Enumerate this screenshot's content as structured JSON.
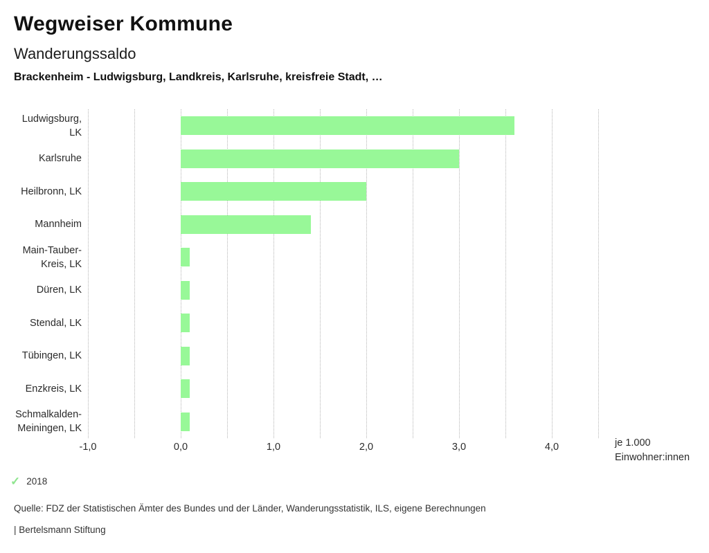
{
  "header": {
    "title": "Wegweiser Kommune",
    "subtitle": "Wanderungssaldo",
    "comparison": "Brackenheim - Ludwigsburg, Landkreis, Karlsruhe, kreisfreie Stadt, …"
  },
  "chart_data": {
    "type": "bar",
    "orientation": "horizontal",
    "title": "Wanderungssaldo",
    "categories": [
      "Ludwigsburg,\nLK",
      "Karlsruhe",
      "Heilbronn, LK",
      "Mannheim",
      "Main-Tauber-\nKreis, LK",
      "Düren, LK",
      "Stendal, LK",
      "Tübingen, LK",
      "Enzkreis, LK",
      "Schmalkalden-\nMeiningen, LK"
    ],
    "series": [
      {
        "name": "2018",
        "values": [
          3.6,
          3.0,
          2.0,
          1.4,
          0.1,
          0.1,
          0.1,
          0.1,
          0.1,
          0.1
        ]
      }
    ],
    "xlim": [
      -1.0,
      4.5
    ],
    "grid_step": 0.5,
    "grid": "vertical-dotted",
    "x_tick_values": [
      -1,
      0,
      1,
      2,
      3,
      4
    ],
    "x_tick_labels": [
      "-1,0",
      "0,0",
      "1,0",
      "2,0",
      "3,0",
      "4,0"
    ],
    "unit_label": "je 1.000\nEinwohner:innen",
    "legend_position": "bottom-left"
  },
  "legend": {
    "year": "2018",
    "check_icon": "checkmark",
    "check_color": "#8FE58F"
  },
  "footer": {
    "source": "Quelle: FDZ der Statistischen Ämter des Bundes und der Länder, Wanderungsstatistik, ILS, eigene Berechnungen",
    "branding": "| Bertelsmann Stiftung"
  },
  "colors": {
    "bar": "#98F898",
    "grid": "#B4B4B4",
    "text": "#222222"
  }
}
